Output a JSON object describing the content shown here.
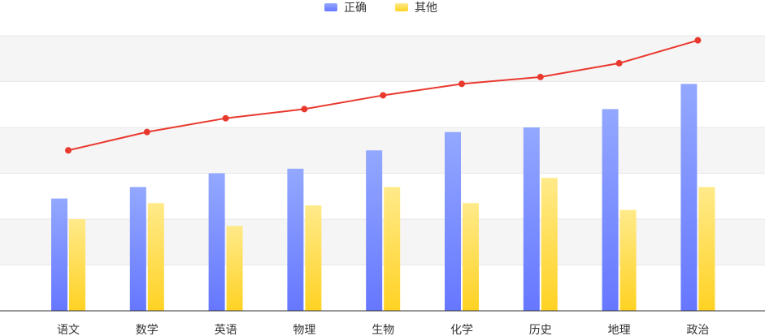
{
  "chart_data": {
    "type": "bar",
    "categories": [
      "语文",
      "数学",
      "英语",
      "物理",
      "生物",
      "化学",
      "历史",
      "地理",
      "政治"
    ],
    "series": [
      {
        "name": "正确",
        "type": "bar",
        "values": [
          49,
          54,
          60,
          62,
          70,
          78,
          80,
          88,
          99
        ]
      },
      {
        "name": "其他",
        "type": "bar",
        "values": [
          40,
          47,
          37,
          46,
          54,
          47,
          58,
          44,
          54
        ]
      },
      {
        "type": "line",
        "values": [
          70,
          78,
          84,
          88,
          94,
          99,
          102,
          108,
          118
        ]
      }
    ],
    "ylim": [
      0,
      120
    ],
    "grid": true,
    "legend_position": "top-center",
    "colors": {
      "correct_top": "#93a8ff",
      "correct_bottom": "#6677ff",
      "other_top": "#ffea8a",
      "other_bottom": "#ffd223",
      "line": "#e9392f",
      "band": "#f5f5f5",
      "grid": "#e8e8e8",
      "axis": "#333333"
    }
  }
}
